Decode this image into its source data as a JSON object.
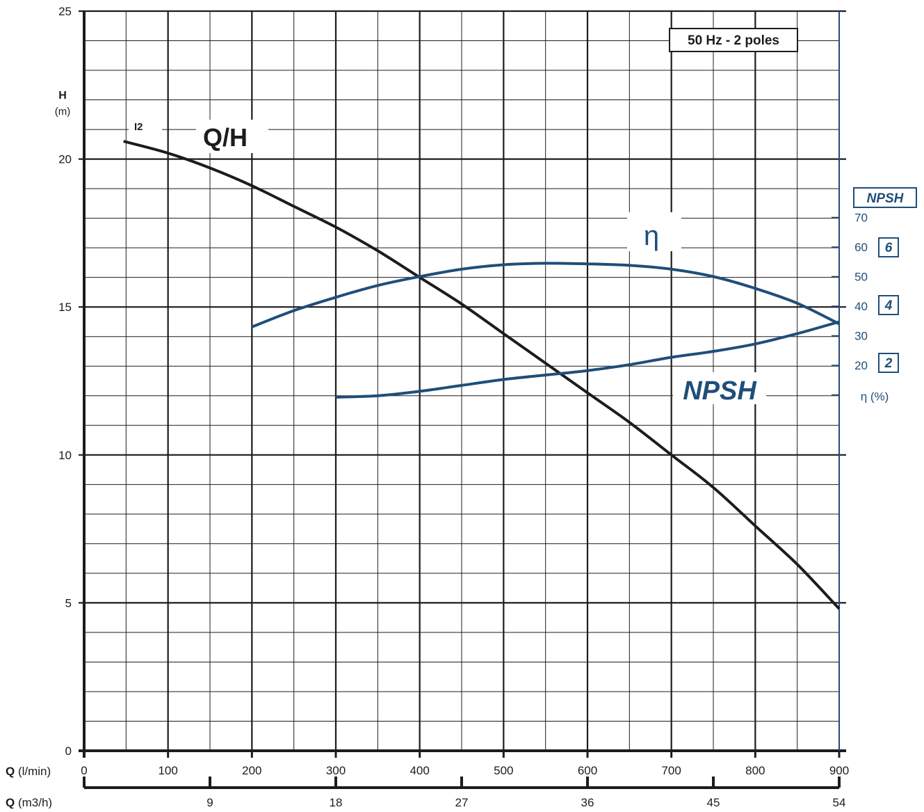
{
  "chart_data": {
    "type": "line",
    "title": "",
    "frequency_label": "50 Hz - 2 poles",
    "curve_label": "I2",
    "colors": {
      "black": "#1c1c1c",
      "blue": "#1f4e79"
    },
    "x_axis": {
      "label_bold": "Q",
      "unit": "(l/min)",
      "range": [
        0,
        900
      ],
      "ticks": [
        0,
        100,
        200,
        300,
        400,
        500,
        600,
        700,
        800,
        900
      ],
      "tick_labels": [
        "0",
        "100",
        "200",
        "300",
        "400",
        "500",
        "600",
        "700",
        "800",
        "900"
      ]
    },
    "x2_axis": {
      "label_bold": "Q",
      "unit": "(m3/h)",
      "range": [
        0,
        54
      ],
      "ticks": [
        9,
        18,
        27,
        36,
        45,
        54
      ],
      "tick_labels": [
        "9",
        "18",
        "27",
        "36",
        "45",
        "54"
      ]
    },
    "y_axis": {
      "label": "H",
      "unit": "(m)",
      "range": [
        0,
        25
      ],
      "ticks": [
        0,
        5,
        10,
        15,
        20,
        25
      ],
      "tick_labels": [
        "0",
        "5",
        "10",
        "15",
        "20",
        "25"
      ]
    },
    "eta_axis": {
      "label": "η (%)",
      "range": [
        0,
        100
      ],
      "ticks": [
        10,
        20,
        30,
        40,
        50,
        60,
        70
      ],
      "tick_labels": [
        "20",
        "30",
        "40",
        "50",
        "60",
        "70"
      ]
    },
    "npsh_axis": {
      "label": "NPSH",
      "ticks": [
        6,
        4,
        2
      ],
      "tick_labels": [
        "6",
        "4",
        "2"
      ]
    },
    "series": [
      {
        "name": "Q/H",
        "axis": "H",
        "color": "#1c1c1c",
        "x": [
          47,
          100,
          150,
          200,
          250,
          300,
          350,
          400,
          450,
          500,
          550,
          600,
          650,
          700,
          750,
          800,
          850,
          900
        ],
        "y": [
          20.6,
          20.2,
          19.7,
          19.1,
          18.4,
          17.7,
          16.9,
          16.0,
          15.1,
          14.1,
          13.1,
          12.1,
          11.1,
          10.0,
          8.9,
          7.6,
          6.3,
          4.8
        ]
      },
      {
        "name": "η",
        "axis": "eta",
        "color": "#1f4e79",
        "x": [
          200,
          250,
          300,
          350,
          400,
          450,
          500,
          550,
          600,
          650,
          700,
          750,
          800,
          850,
          900
        ],
        "y": [
          33,
          38.5,
          43,
          47,
          50,
          52.5,
          54,
          54.5,
          54.3,
          53.8,
          52.5,
          50,
          46,
          41,
          34
        ]
      },
      {
        "name": "NPSH",
        "axis": "H",
        "color": "#1f4e79",
        "x": [
          300,
          350,
          400,
          450,
          500,
          550,
          600,
          650,
          700,
          750,
          800,
          850,
          900
        ],
        "y": [
          11.95,
          12.0,
          12.15,
          12.35,
          12.55,
          12.7,
          12.85,
          13.05,
          13.3,
          13.5,
          13.75,
          14.1,
          14.5
        ]
      }
    ],
    "grid": true
  }
}
